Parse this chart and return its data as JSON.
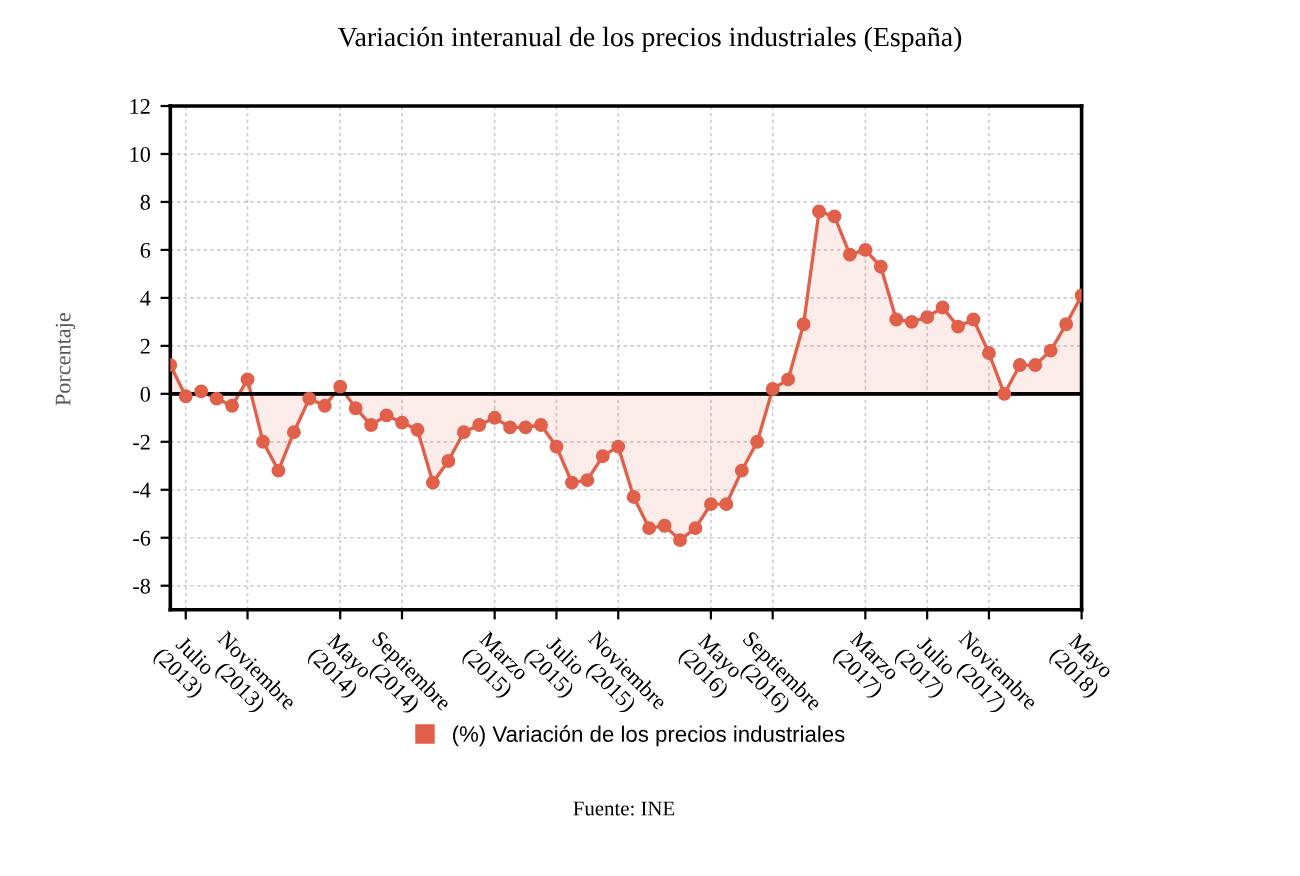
{
  "chart_data": {
    "type": "area",
    "title": "Variación interanual de los precios industriales (España)",
    "ylabel": "Porcentaje",
    "categories": [
      null,
      "Julio\n(2013)",
      null,
      null,
      null,
      "Noviembre\n(2013)",
      null,
      null,
      null,
      null,
      null,
      "Mayo\n(2014)",
      null,
      null,
      null,
      "Septiembre\n(2014)",
      null,
      null,
      null,
      null,
      null,
      "Marzo\n(2015)",
      null,
      null,
      null,
      "Julio\n(2015)",
      null,
      null,
      null,
      "Noviembre\n(2015)",
      null,
      null,
      null,
      null,
      null,
      "Mayo\n(2016)",
      null,
      null,
      null,
      "Septiembre\n(2016)",
      null,
      null,
      null,
      null,
      null,
      "Marzo\n(2017)",
      null,
      null,
      null,
      "Julio\n(2017)",
      null,
      null,
      null,
      "Noviembre\n(2017)",
      null,
      null,
      null,
      null,
      null,
      "Mayo\n(2018)"
    ],
    "series": [
      {
        "name": "(%) Variación de los precios industriales",
        "color": "#e0604a",
        "values": [
          1.2,
          -0.1,
          0.1,
          -0.2,
          -0.5,
          0.6,
          -2.0,
          -3.2,
          -1.6,
          -0.2,
          -0.5,
          0.3,
          -0.6,
          -1.3,
          -0.9,
          -1.2,
          -1.5,
          -3.7,
          -2.8,
          -1.6,
          -1.3,
          -1.0,
          -1.4,
          -1.4,
          -1.3,
          -2.2,
          -3.7,
          -3.6,
          -2.6,
          -2.2,
          -4.3,
          -5.6,
          -5.5,
          -6.1,
          -5.6,
          -4.6,
          -4.6,
          -3.2,
          -2.0,
          0.2,
          0.6,
          2.9,
          7.6,
          7.4,
          5.8,
          6.0,
          5.3,
          3.1,
          3.0,
          3.2,
          3.6,
          2.8,
          3.1,
          1.7,
          0.0,
          1.2,
          1.2,
          1.8,
          2.9,
          4.1
        ]
      }
    ],
    "ylim": [
      -9,
      12
    ],
    "yticks": [
      -8,
      -6,
      -4,
      -2,
      0,
      2,
      4,
      6,
      8,
      10,
      12
    ],
    "ref_lines": [
      {
        "axis": "y",
        "value": 0,
        "color": "#000000"
      }
    ],
    "grid": true,
    "legend": "bottom",
    "marker": "circle",
    "line_style": "solid",
    "annotations": [
      "Fuente: INE"
    ]
  }
}
